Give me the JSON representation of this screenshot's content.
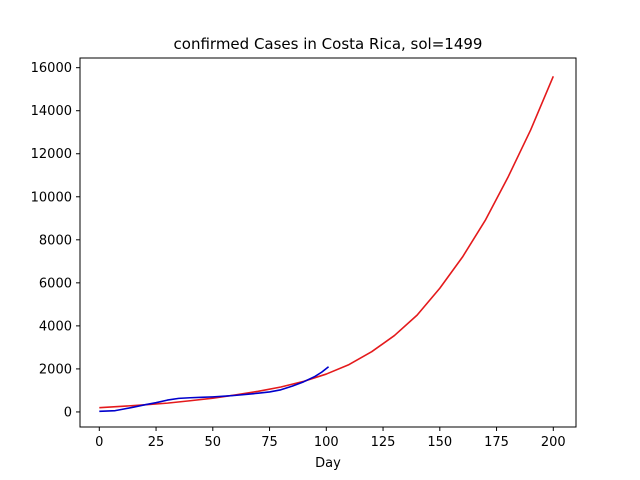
{
  "chart_data": {
    "type": "line",
    "title": "confirmed Cases in Costa Rica, sol=1499",
    "xlabel": "Day",
    "ylabel": "",
    "xlim": [
      -8.5,
      210
    ],
    "ylim": [
      -700,
      16450
    ],
    "xticks": [
      0,
      25,
      50,
      75,
      100,
      125,
      150,
      175,
      200
    ],
    "yticks": [
      0,
      2000,
      4000,
      6000,
      8000,
      10000,
      12000,
      14000,
      16000
    ],
    "grid": false,
    "legend": "none",
    "series": [
      {
        "color": "#e41a1c",
        "x": [
          0,
          10,
          20,
          30,
          40,
          50,
          60,
          70,
          80,
          90,
          100,
          110,
          120,
          130,
          140,
          150,
          160,
          170,
          180,
          190,
          200
        ],
        "y": [
          200,
          260,
          330,
          410,
          520,
          640,
          790,
          960,
          1160,
          1420,
          1760,
          2200,
          2800,
          3550,
          4500,
          5750,
          7200,
          8900,
          10900,
          13100,
          15600
        ]
      },
      {
        "color": "#0000cc",
        "x": [
          0,
          3,
          7,
          10,
          15,
          20,
          25,
          30,
          35,
          40,
          45,
          50,
          55,
          60,
          65,
          70,
          75,
          80,
          85,
          90,
          95,
          98,
          101
        ],
        "y": [
          30,
          40,
          60,
          120,
          220,
          330,
          430,
          550,
          630,
          660,
          680,
          700,
          730,
          770,
          820,
          870,
          930,
          1030,
          1200,
          1400,
          1650,
          1850,
          2100
        ]
      }
    ]
  }
}
